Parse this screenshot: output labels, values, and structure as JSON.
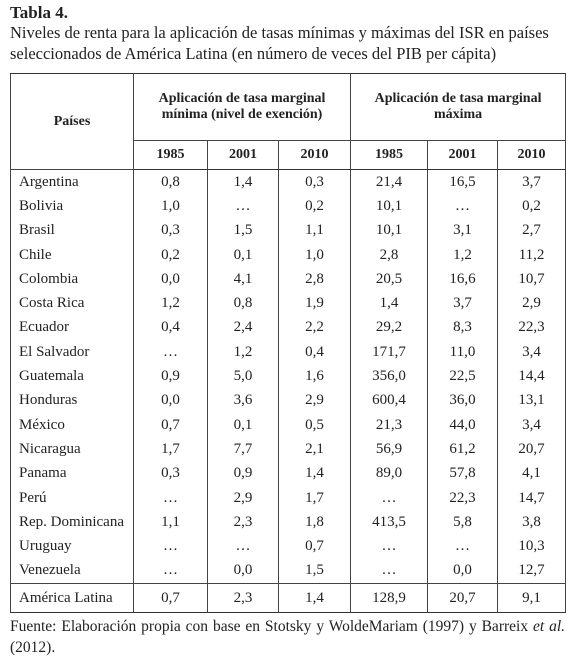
{
  "title": "Tabla 4.",
  "subtitle_lines": [
    "Niveles de renta para la aplicación de tasas mínimas y máximas del ISR en países",
    "seleccionados de América Latina (en número de veces del PIB per cápita)"
  ],
  "table": {
    "header": {
      "country": "Países",
      "group_min": [
        "Aplicación de tasa marginal",
        "mínima (nivel de exención)"
      ],
      "group_max": [
        "Aplicación de tasa marginal",
        "máxima"
      ],
      "years": [
        "1985",
        "2001",
        "2010",
        "1985",
        "2001",
        "2010"
      ]
    },
    "rows": [
      [
        "Argentina",
        "0,8",
        "1,4",
        "0,3",
        "21,4",
        "16,5",
        "3,7"
      ],
      [
        "Bolivia",
        "1,0",
        "…",
        "0,2",
        "10,1",
        "…",
        "0,2"
      ],
      [
        "Brasil",
        "0,3",
        "1,5",
        "1,1",
        "10,1",
        "3,1",
        "2,7"
      ],
      [
        "Chile",
        "0,2",
        "0,1",
        "1,0",
        "2,8",
        "1,2",
        "11,2"
      ],
      [
        "Colombia",
        "0,0",
        "4,1",
        "2,8",
        "20,5",
        "16,6",
        "10,7"
      ],
      [
        "Costa Rica",
        "1,2",
        "0,8",
        "1,9",
        "1,4",
        "3,7",
        "2,9"
      ],
      [
        "Ecuador",
        "0,4",
        "2,4",
        "2,2",
        "29,2",
        "8,3",
        "22,3"
      ],
      [
        "El Salvador",
        "…",
        "1,2",
        "0,4",
        "171,7",
        "11,0",
        "3,4"
      ],
      [
        "Guatemala",
        "0,9",
        "5,0",
        "1,6",
        "356,0",
        "22,5",
        "14,4"
      ],
      [
        "Honduras",
        "0,0",
        "3,6",
        "2,9",
        "600,4",
        "36,0",
        "13,1"
      ],
      [
        "México",
        "0,7",
        "0,1",
        "0,5",
        "21,3",
        "44,0",
        "3,4"
      ],
      [
        "Nicaragua",
        "1,7",
        "7,7",
        "2,1",
        "56,9",
        "61,2",
        "20,7"
      ],
      [
        "Panama",
        "0,3",
        "0,9",
        "1,4",
        "89,0",
        "57,8",
        "4,1"
      ],
      [
        "Perú",
        "…",
        "2,9",
        "1,7",
        "…",
        "22,3",
        "14,7"
      ],
      [
        "Rep. Dominicana",
        "1,1",
        "2,3",
        "1,8",
        "413,5",
        "5,8",
        "3,8"
      ],
      [
        "Uruguay",
        "…",
        "…",
        "0,7",
        "…",
        "…",
        "10,3"
      ],
      [
        "Venezuela",
        "…",
        "0,0",
        "1,5",
        "…",
        "0,0",
        "12,7"
      ]
    ],
    "total": [
      "América Latina",
      "0,7",
      "2,3",
      "1,4",
      "128,9",
      "20,7",
      "9,1"
    ]
  },
  "footnote": {
    "text": "Fuente: Elaboración propia con base en Stotsky y WoldeMariam (1997) y Barreix",
    "italic": "et al.",
    "end": "(2012)."
  }
}
